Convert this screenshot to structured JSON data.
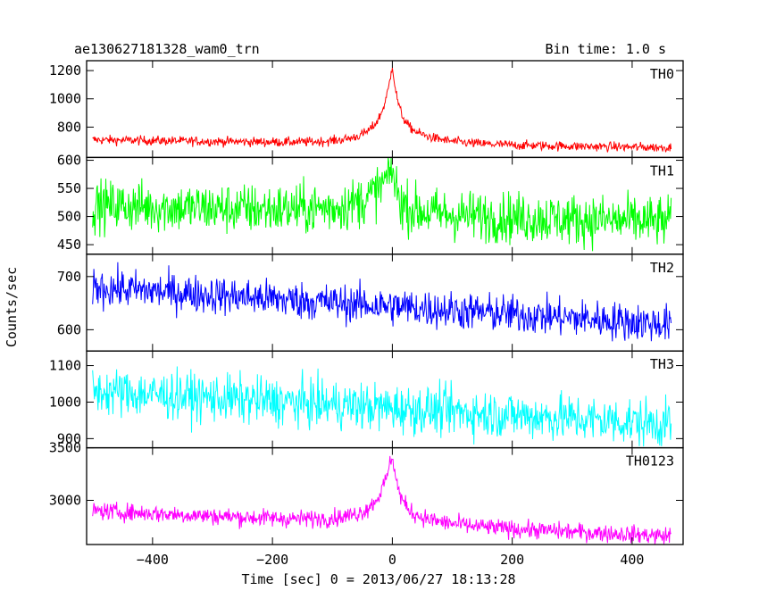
{
  "header": {
    "title": "ae130627181328_wam0_trn",
    "bin_time": "Bin time: 1.0 s"
  },
  "axes": {
    "ylabel": "Counts/sec",
    "xlabel": "Time [sec] 0 = 2013/06/27 18:13:28"
  },
  "chart_data": {
    "type": "line",
    "xlim": [
      -510,
      485
    ],
    "x_ticks": [
      -400,
      -200,
      0,
      200,
      400
    ],
    "x_tick_labels": [
      "−400",
      "−200",
      "0",
      "200",
      "400"
    ],
    "x_range": [
      -500,
      465
    ],
    "bin_time_s": 1.0,
    "grid": false,
    "panels": [
      {
        "name": "TH0",
        "color": "#ff0000",
        "ylim": [
          585,
          1270
        ],
        "y_ticks": [
          800,
          1000,
          1200
        ],
        "baseline": {
          "start": 710,
          "end": 655
        },
        "noise_amp": 28,
        "burst": {
          "peak": 1270,
          "width_rise": 14,
          "width_decay": 10,
          "base_boost": 180
        }
      },
      {
        "name": "TH1",
        "color": "#00ff00",
        "ylim": [
          433,
          605
        ],
        "y_ticks": [
          450,
          500,
          550,
          600
        ],
        "baseline": {
          "start": 520,
          "end": 490
        },
        "noise_amp": 38,
        "burst": {
          "peak": 600,
          "width_rise": 30,
          "width_decay": 8,
          "base_boost": 20
        }
      },
      {
        "name": "TH2",
        "color": "#0000ff",
        "ylim": [
          560,
          742
        ],
        "y_ticks": [
          600,
          700
        ],
        "baseline": {
          "start": 680,
          "end": 610
        },
        "noise_amp": 30,
        "burst": null
      },
      {
        "name": "TH3",
        "color": "#00ffff",
        "ylim": [
          875,
          1140
        ],
        "y_ticks": [
          900,
          1000,
          1100
        ],
        "baseline": {
          "start": 1030,
          "end": 940
        },
        "noise_amp": 55,
        "burst": null
      },
      {
        "name": "TH0123",
        "color": "#ff00ff",
        "ylim": [
          2580,
          3500
        ],
        "y_ticks": [
          3000,
          3500
        ],
        "baseline": {
          "start": 2900,
          "end": 2660
        },
        "noise_amp": 70,
        "burst": {
          "peak": 3500,
          "width_rise": 18,
          "width_decay": 10,
          "base_boost": 200
        }
      }
    ]
  }
}
